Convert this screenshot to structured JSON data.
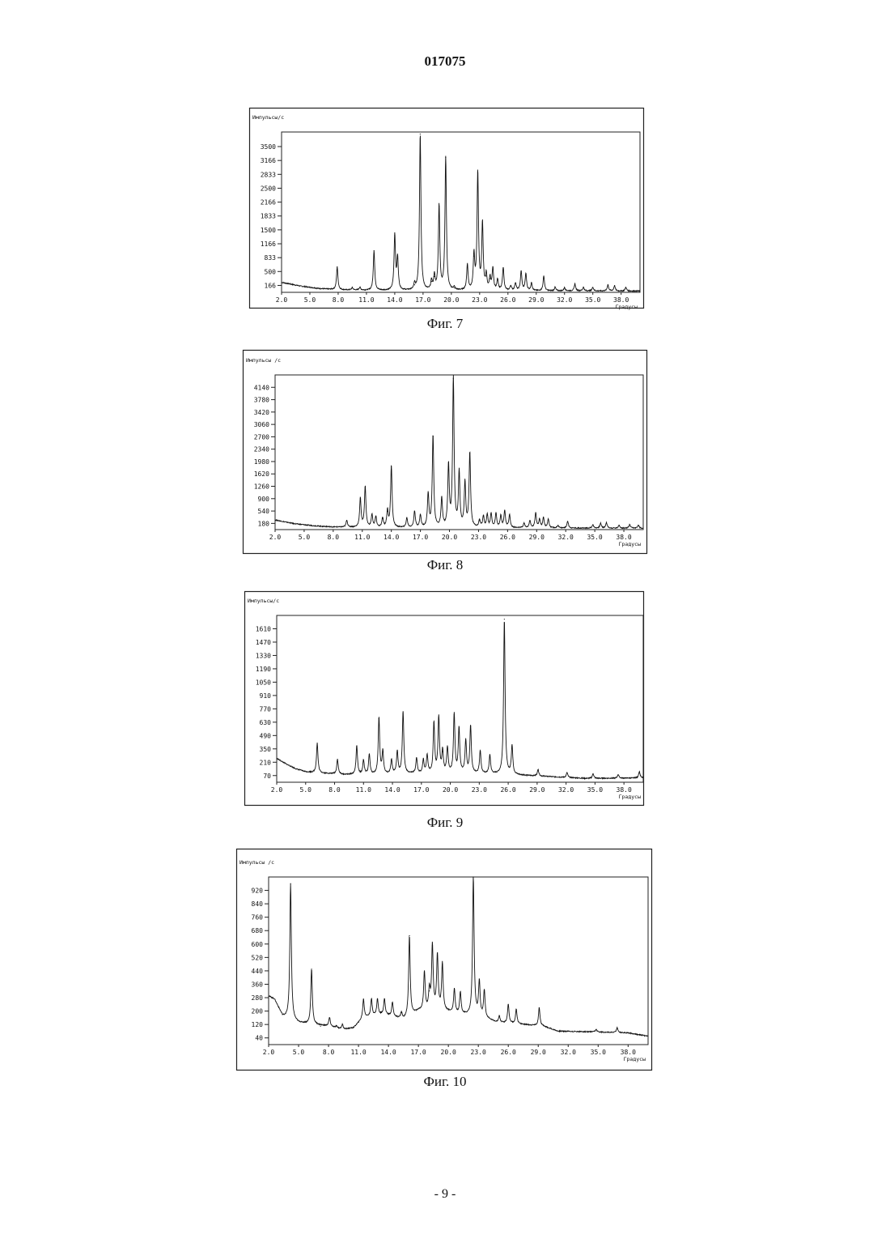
{
  "document": {
    "number": "017075",
    "page_number": "- 9 -"
  },
  "chart_data": [
    {
      "type": "line",
      "caption": "Фиг. 7",
      "ylabel": "Импульсы/с",
      "xlabel": "Градусы",
      "xlim": [
        2.0,
        40.0
      ],
      "ylim": [
        0,
        3850
      ],
      "x_ticks": [
        "2.0",
        "5.0",
        "8.0",
        "11.0",
        "14.0",
        "17.0",
        "20.0",
        "23.0",
        "26.0",
        "29.0",
        "32.0",
        "35.0",
        "38.0"
      ],
      "y_ticks": [
        "3500",
        "3166",
        "2833",
        "2500",
        "2166",
        "1833",
        "1500",
        "1166",
        "833",
        "500",
        "166"
      ],
      "baseline": [
        [
          2.0,
          240
        ],
        [
          4.0,
          150
        ],
        [
          6.0,
          90
        ],
        [
          8.0,
          60
        ],
        [
          12.0,
          45
        ],
        [
          20.0,
          40
        ],
        [
          40.0,
          30
        ]
      ],
      "peaks": [
        [
          7.9,
          610
        ],
        [
          9.5,
          110
        ],
        [
          10.3,
          120
        ],
        [
          11.8,
          1000
        ],
        [
          14.0,
          1370
        ],
        [
          14.3,
          810
        ],
        [
          16.1,
          180
        ],
        [
          16.7,
          3800
        ],
        [
          17.9,
          260
        ],
        [
          18.2,
          380
        ],
        [
          18.7,
          2070
        ],
        [
          19.4,
          3240
        ],
        [
          20.3,
          110
        ],
        [
          21.7,
          650
        ],
        [
          22.4,
          870
        ],
        [
          22.8,
          2870
        ],
        [
          23.3,
          1630
        ],
        [
          23.7,
          390
        ],
        [
          24.1,
          330
        ],
        [
          24.4,
          560
        ],
        [
          24.9,
          300
        ],
        [
          25.5,
          590
        ],
        [
          26.3,
          150
        ],
        [
          26.8,
          220
        ],
        [
          27.4,
          500
        ],
        [
          27.9,
          440
        ],
        [
          28.5,
          220
        ],
        [
          29.8,
          390
        ],
        [
          31.0,
          120
        ],
        [
          32.0,
          110
        ],
        [
          33.1,
          200
        ],
        [
          34.0,
          120
        ],
        [
          35.0,
          120
        ],
        [
          36.6,
          180
        ],
        [
          37.3,
          160
        ],
        [
          38.5,
          120
        ]
      ]
    },
    {
      "type": "line",
      "caption": "Фиг. 8",
      "ylabel": "Импульсы /с",
      "xlabel": "Градусы",
      "xlim": [
        2.0,
        40.0
      ],
      "ylim": [
        0,
        4500
      ],
      "x_ticks": [
        "2.0",
        "5.0",
        "8.0",
        "11.0",
        "14.0",
        "17.0",
        "20.0",
        "23.0",
        "26.0",
        "29.0",
        "32.0",
        "35.0",
        "38.0"
      ],
      "y_ticks": [
        "4140",
        "3780",
        "3420",
        "3060",
        "2700",
        "2340",
        "1980",
        "1620",
        "1260",
        "900",
        "540",
        "180"
      ],
      "baseline": [
        [
          2.0,
          280
        ],
        [
          4.0,
          170
        ],
        [
          6.0,
          110
        ],
        [
          8.0,
          75
        ],
        [
          12.0,
          55
        ],
        [
          20.0,
          50
        ],
        [
          40.0,
          40
        ]
      ],
      "peaks": [
        [
          6.9,
          80
        ],
        [
          9.4,
          270
        ],
        [
          10.8,
          900
        ],
        [
          11.3,
          1240
        ],
        [
          12.0,
          420
        ],
        [
          12.4,
          360
        ],
        [
          13.1,
          320
        ],
        [
          13.6,
          530
        ],
        [
          14.0,
          1830
        ],
        [
          15.6,
          330
        ],
        [
          16.4,
          530
        ],
        [
          17.0,
          410
        ],
        [
          17.8,
          1020
        ],
        [
          18.3,
          2720
        ],
        [
          19.2,
          880
        ],
        [
          19.9,
          1830
        ],
        [
          20.4,
          4400
        ],
        [
          21.0,
          1630
        ],
        [
          21.6,
          1340
        ],
        [
          22.1,
          2220
        ],
        [
          23.1,
          260
        ],
        [
          23.5,
          380
        ],
        [
          23.9,
          420
        ],
        [
          24.3,
          450
        ],
        [
          24.8,
          460
        ],
        [
          25.3,
          400
        ],
        [
          25.7,
          540
        ],
        [
          26.2,
          420
        ],
        [
          27.7,
          180
        ],
        [
          28.3,
          250
        ],
        [
          28.9,
          480
        ],
        [
          29.3,
          290
        ],
        [
          29.7,
          330
        ],
        [
          30.2,
          300
        ],
        [
          31.2,
          120
        ],
        [
          32.2,
          240
        ],
        [
          34.8,
          140
        ],
        [
          35.6,
          180
        ],
        [
          36.2,
          200
        ],
        [
          37.5,
          120
        ],
        [
          38.6,
          140
        ],
        [
          39.5,
          130
        ]
      ]
    },
    {
      "type": "line",
      "caption": "Фиг. 9",
      "ylabel": "Импульсы/с",
      "xlabel": "Градусы",
      "xlim": [
        2.0,
        40.0
      ],
      "ylim": [
        0,
        1750
      ],
      "x_ticks": [
        "2.0",
        "5.0",
        "8.0",
        "11.0",
        "14.0",
        "17.0",
        "20.0",
        "23.0",
        "26.0",
        "29.0",
        "32.0",
        "35.0",
        "38.0"
      ],
      "y_ticks": [
        "1610",
        "1470",
        "1330",
        "1190",
        "1050",
        "910",
        "770",
        "630",
        "490",
        "350",
        "210",
        "70"
      ],
      "baseline": [
        [
          2.0,
          250
        ],
        [
          3.0,
          190
        ],
        [
          4.0,
          140
        ],
        [
          5.0,
          110
        ],
        [
          6.0,
          100
        ],
        [
          9.0,
          80
        ],
        [
          12.0,
          80
        ],
        [
          16.0,
          90
        ],
        [
          20.0,
          95
        ],
        [
          23.0,
          90
        ],
        [
          26.0,
          80
        ],
        [
          30.0,
          60
        ],
        [
          34.0,
          40
        ],
        [
          40.0,
          45
        ]
      ],
      "peaks": [
        [
          6.2,
          410
        ],
        [
          8.3,
          240
        ],
        [
          10.3,
          380
        ],
        [
          11.0,
          230
        ],
        [
          11.6,
          290
        ],
        [
          12.6,
          670
        ],
        [
          13.0,
          320
        ],
        [
          13.9,
          230
        ],
        [
          14.5,
          320
        ],
        [
          15.1,
          740
        ],
        [
          16.5,
          250
        ],
        [
          17.2,
          230
        ],
        [
          17.6,
          280
        ],
        [
          18.3,
          620
        ],
        [
          18.8,
          680
        ],
        [
          19.2,
          320
        ],
        [
          19.7,
          360
        ],
        [
          20.4,
          710
        ],
        [
          20.9,
          560
        ],
        [
          21.6,
          430
        ],
        [
          22.1,
          590
        ],
        [
          23.1,
          330
        ],
        [
          24.1,
          280
        ],
        [
          25.6,
          1710
        ],
        [
          26.4,
          380
        ],
        [
          29.1,
          130
        ],
        [
          32.1,
          100
        ],
        [
          34.8,
          90
        ],
        [
          37.4,
          80
        ],
        [
          39.6,
          110
        ]
      ]
    },
    {
      "type": "line",
      "caption": "Фиг. 10",
      "ylabel": "Импульсы /с",
      "xlabel": "Градусы",
      "xlim": [
        2.0,
        40.0
      ],
      "ylim": [
        0,
        1000
      ],
      "x_ticks": [
        "2.0",
        "5.0",
        "8.0",
        "11.0",
        "14.0",
        "17.0",
        "20.0",
        "23.0",
        "26.0",
        "29.0",
        "32.0",
        "35.0",
        "38.0"
      ],
      "y_ticks": [
        "920",
        "840",
        "760",
        "680",
        "600",
        "520",
        "440",
        "360",
        "280",
        "200",
        "120",
        "40"
      ],
      "baseline": [
        [
          2.0,
          290
        ],
        [
          2.6,
          270
        ],
        [
          3.4,
          170
        ],
        [
          5.0,
          130
        ],
        [
          6.5,
          120
        ],
        [
          8.0,
          110
        ],
        [
          9.5,
          90
        ],
        [
          10.5,
          100
        ],
        [
          11.5,
          160
        ],
        [
          13.5,
          180
        ],
        [
          15.5,
          150
        ],
        [
          17.0,
          200
        ],
        [
          19.0,
          210
        ],
        [
          21.0,
          180
        ],
        [
          23.0,
          170
        ],
        [
          25.0,
          130
        ],
        [
          27.5,
          120
        ],
        [
          29.5,
          110
        ],
        [
          31.0,
          80
        ],
        [
          35.0,
          75
        ],
        [
          38.0,
          70
        ],
        [
          40.0,
          50
        ]
      ],
      "peaks": [
        [
          4.2,
          960
        ],
        [
          6.3,
          450
        ],
        [
          7.2,
          110
        ],
        [
          8.1,
          160
        ],
        [
          8.8,
          110
        ],
        [
          9.4,
          120
        ],
        [
          11.5,
          270
        ],
        [
          12.3,
          270
        ],
        [
          12.9,
          270
        ],
        [
          13.6,
          270
        ],
        [
          14.4,
          250
        ],
        [
          15.3,
          190
        ],
        [
          16.1,
          650
        ],
        [
          17.6,
          430
        ],
        [
          18.1,
          320
        ],
        [
          18.4,
          590
        ],
        [
          18.9,
          530
        ],
        [
          19.4,
          480
        ],
        [
          20.6,
          330
        ],
        [
          21.2,
          310
        ],
        [
          22.5,
          1000
        ],
        [
          23.1,
          370
        ],
        [
          23.6,
          320
        ],
        [
          25.1,
          170
        ],
        [
          26.0,
          240
        ],
        [
          26.8,
          210
        ],
        [
          29.1,
          220
        ],
        [
          32.0,
          80
        ],
        [
          34.8,
          90
        ],
        [
          36.9,
          100
        ]
      ]
    }
  ]
}
